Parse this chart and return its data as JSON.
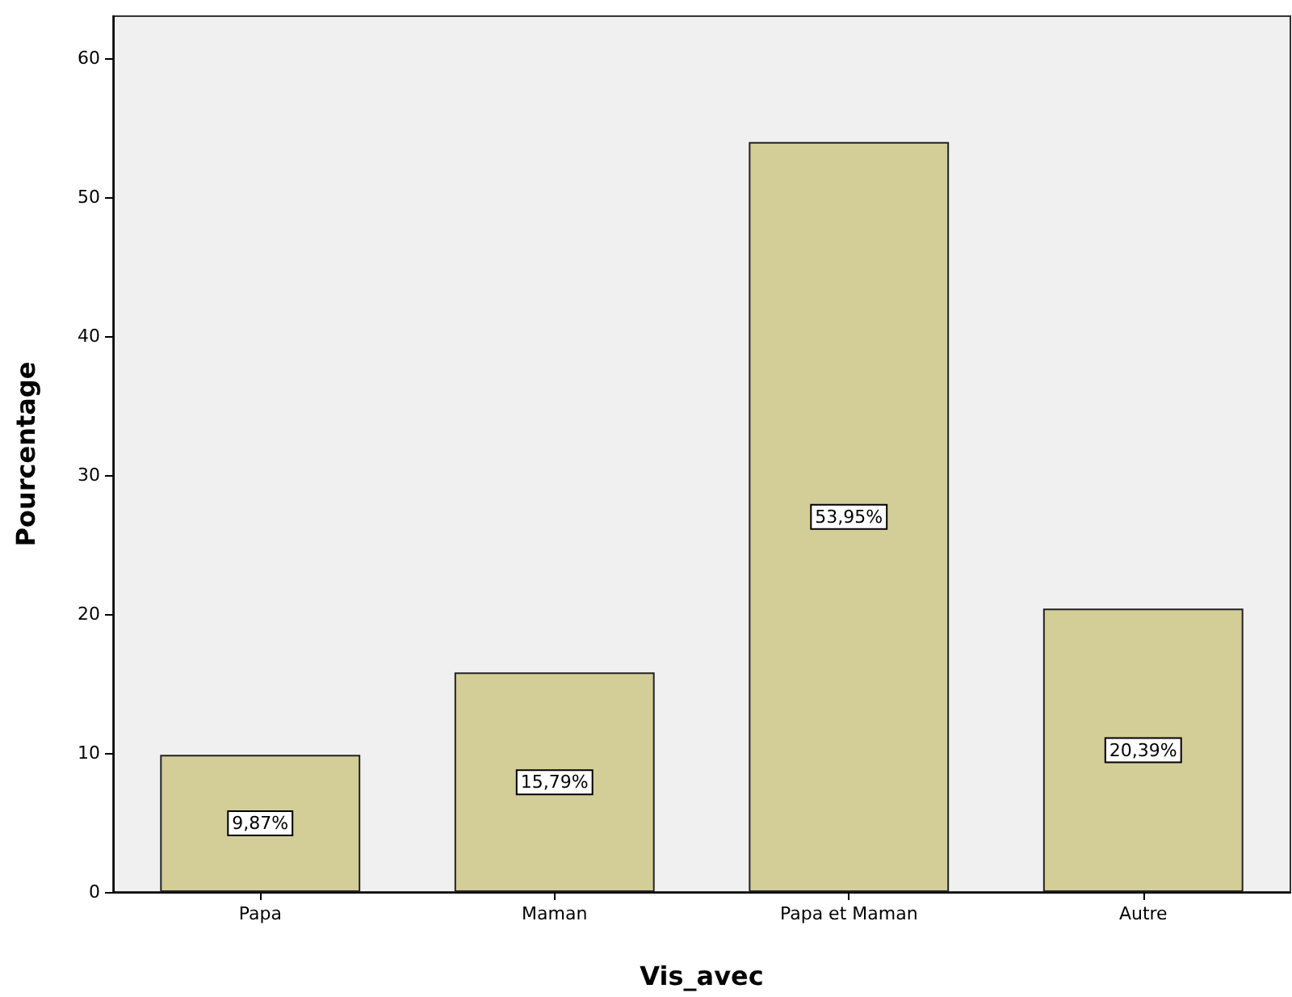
{
  "chart_data": {
    "type": "bar",
    "xlabel": "Vis_avec",
    "ylabel": "Pourcentage",
    "categories": [
      "Papa",
      "Maman",
      "Papa et Maman",
      "Autre"
    ],
    "values": [
      9.87,
      15.79,
      53.95,
      20.39
    ],
    "value_labels": [
      "9,87%",
      "15,79%",
      "53,95%",
      "20,39%"
    ],
    "color": "#d3ce97",
    "ylim": [
      0,
      63
    ],
    "yticks": [
      0,
      10,
      20,
      30,
      40,
      50,
      60
    ]
  }
}
